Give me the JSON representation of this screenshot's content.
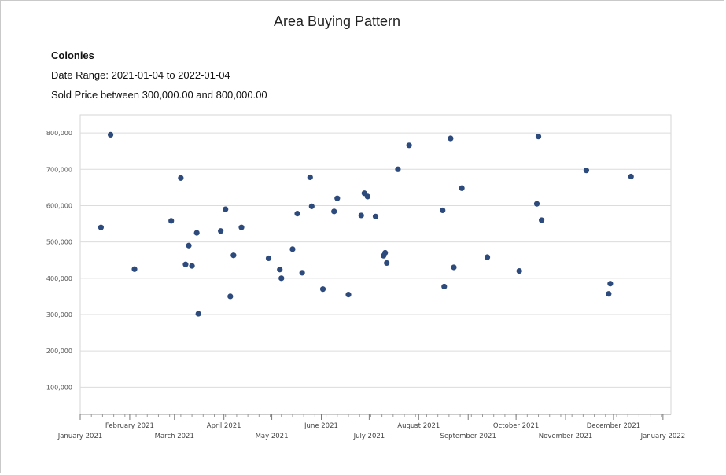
{
  "report": {
    "title": "Area Buying Pattern",
    "area": "Colonies",
    "date_range": "Date Range: 2021-01-04 to 2022-01-04",
    "price_range": "Sold Price between 300,000.00 and 800,000.00"
  },
  "chart_data": {
    "type": "scatter",
    "title": "Area Buying Pattern",
    "xlabel": "",
    "ylabel": "",
    "x_axis_type": "date",
    "xlim": [
      "2021-01-01",
      "2022-01-06"
    ],
    "ylim": [
      25000,
      850000
    ],
    "grid": {
      "horizontal": true,
      "vertical": false
    },
    "legend": "none",
    "y_ticks": [
      100000,
      200000,
      300000,
      400000,
      500000,
      600000,
      700000,
      800000
    ],
    "y_tick_labels": [
      "100,000",
      "200,000",
      "300,000",
      "400,000",
      "500,000",
      "600,000",
      "700,000",
      "800,000"
    ],
    "x_ticks": [
      {
        "date": "2021-01-01",
        "label": "January 2021"
      },
      {
        "date": "2021-02-01",
        "label": "February 2021"
      },
      {
        "date": "2021-03-01",
        "label": "March 2021"
      },
      {
        "date": "2021-04-01",
        "label": "April 2021"
      },
      {
        "date": "2021-05-01",
        "label": "May 2021"
      },
      {
        "date": "2021-06-01",
        "label": "June 2021"
      },
      {
        "date": "2021-07-01",
        "label": "July 2021"
      },
      {
        "date": "2021-08-01",
        "label": "August 2021"
      },
      {
        "date": "2021-09-01",
        "label": "September 2021"
      },
      {
        "date": "2021-10-01",
        "label": "October 2021"
      },
      {
        "date": "2021-11-01",
        "label": "November 2021"
      },
      {
        "date": "2021-12-01",
        "label": "December 2021"
      },
      {
        "date": "2022-01-01",
        "label": "January 2022"
      }
    ],
    "marker_color": "#2d4a7c",
    "points": [
      {
        "x": "2021-01-14",
        "y": 540000
      },
      {
        "x": "2021-01-20",
        "y": 795000
      },
      {
        "x": "2021-02-04",
        "y": 425000
      },
      {
        "x": "2021-02-27",
        "y": 558000
      },
      {
        "x": "2021-03-05",
        "y": 676000
      },
      {
        "x": "2021-03-08",
        "y": 438000
      },
      {
        "x": "2021-03-10",
        "y": 490000
      },
      {
        "x": "2021-03-12",
        "y": 434000
      },
      {
        "x": "2021-03-15",
        "y": 525000
      },
      {
        "x": "2021-03-16",
        "y": 302000
      },
      {
        "x": "2021-03-30",
        "y": 530000
      },
      {
        "x": "2021-04-02",
        "y": 590000
      },
      {
        "x": "2021-04-05",
        "y": 350000
      },
      {
        "x": "2021-04-07",
        "y": 463000
      },
      {
        "x": "2021-04-12",
        "y": 540000
      },
      {
        "x": "2021-04-29",
        "y": 455000
      },
      {
        "x": "2021-05-06",
        "y": 424000
      },
      {
        "x": "2021-05-07",
        "y": 400000
      },
      {
        "x": "2021-05-14",
        "y": 480000
      },
      {
        "x": "2021-05-17",
        "y": 578000
      },
      {
        "x": "2021-05-20",
        "y": 415000
      },
      {
        "x": "2021-05-25",
        "y": 678000
      },
      {
        "x": "2021-05-26",
        "y": 598000
      },
      {
        "x": "2021-06-02",
        "y": 370000
      },
      {
        "x": "2021-06-09",
        "y": 584000
      },
      {
        "x": "2021-06-11",
        "y": 620000
      },
      {
        "x": "2021-06-18",
        "y": 355000
      },
      {
        "x": "2021-06-26",
        "y": 573000
      },
      {
        "x": "2021-06-28",
        "y": 634000
      },
      {
        "x": "2021-06-30",
        "y": 625000
      },
      {
        "x": "2021-07-05",
        "y": 570000
      },
      {
        "x": "2021-07-10",
        "y": 462000
      },
      {
        "x": "2021-07-11",
        "y": 470000
      },
      {
        "x": "2021-07-12",
        "y": 442000
      },
      {
        "x": "2021-07-19",
        "y": 700000
      },
      {
        "x": "2021-07-26",
        "y": 766000
      },
      {
        "x": "2021-08-16",
        "y": 587000
      },
      {
        "x": "2021-08-17",
        "y": 377000
      },
      {
        "x": "2021-08-21",
        "y": 785000
      },
      {
        "x": "2021-08-23",
        "y": 430000
      },
      {
        "x": "2021-08-28",
        "y": 648000
      },
      {
        "x": "2021-09-13",
        "y": 458000
      },
      {
        "x": "2021-10-03",
        "y": 420000
      },
      {
        "x": "2021-10-14",
        "y": 605000
      },
      {
        "x": "2021-10-15",
        "y": 790000
      },
      {
        "x": "2021-10-17",
        "y": 560000
      },
      {
        "x": "2021-11-14",
        "y": 697000
      },
      {
        "x": "2021-11-28",
        "y": 357000
      },
      {
        "x": "2021-11-29",
        "y": 385000
      },
      {
        "x": "2021-12-12",
        "y": 680000
      }
    ]
  }
}
